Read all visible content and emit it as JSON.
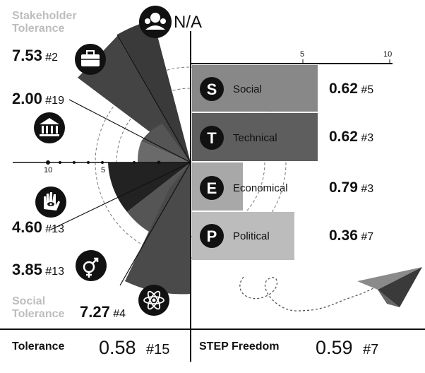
{
  "left_panel": {
    "stakeholder_title": "Stakeholder\nTolerance",
    "social_title": "Social\nTolerance",
    "na_label": "N/A",
    "axis_ticks": [
      "10",
      "5"
    ],
    "items": [
      {
        "value": "7.53",
        "rank": "#2",
        "icon": "briefcase-icon"
      },
      {
        "value": "2.00",
        "rank": "#19",
        "icon": "government-building-icon"
      },
      {
        "value": "4.60",
        "rank": "#13",
        "icon": "hand-eye-icon"
      },
      {
        "value": "3.85",
        "rank": "#13",
        "icon": "gender-icon"
      },
      {
        "value": "7.27",
        "rank": "#4",
        "icon": "atom-icon"
      }
    ],
    "na_icon": "people-group-icon"
  },
  "right_panel": {
    "axis_ticks": [
      "5",
      "10"
    ],
    "bars": [
      {
        "letter": "S",
        "label": "Social",
        "value": "0.62",
        "rank": "#5",
        "color": "#888888"
      },
      {
        "letter": "T",
        "label": "Technical",
        "value": "0.62",
        "rank": "#3",
        "color": "#5e5e5e"
      },
      {
        "letter": "E",
        "label": "Economical",
        "value": "0.79",
        "rank": "#3",
        "color": "#a8a8a8"
      },
      {
        "letter": "P",
        "label": "Political",
        "value": "0.36",
        "rank": "#7",
        "color": "#bcbcbc"
      }
    ],
    "decoration": "paper-plane-icon"
  },
  "footer": {
    "tolerance_label": "Tolerance",
    "tolerance_value": "0.58",
    "tolerance_rank": "#15",
    "step_label": "STEP Freedom",
    "step_value": "0.59",
    "step_rank": "#7"
  }
}
